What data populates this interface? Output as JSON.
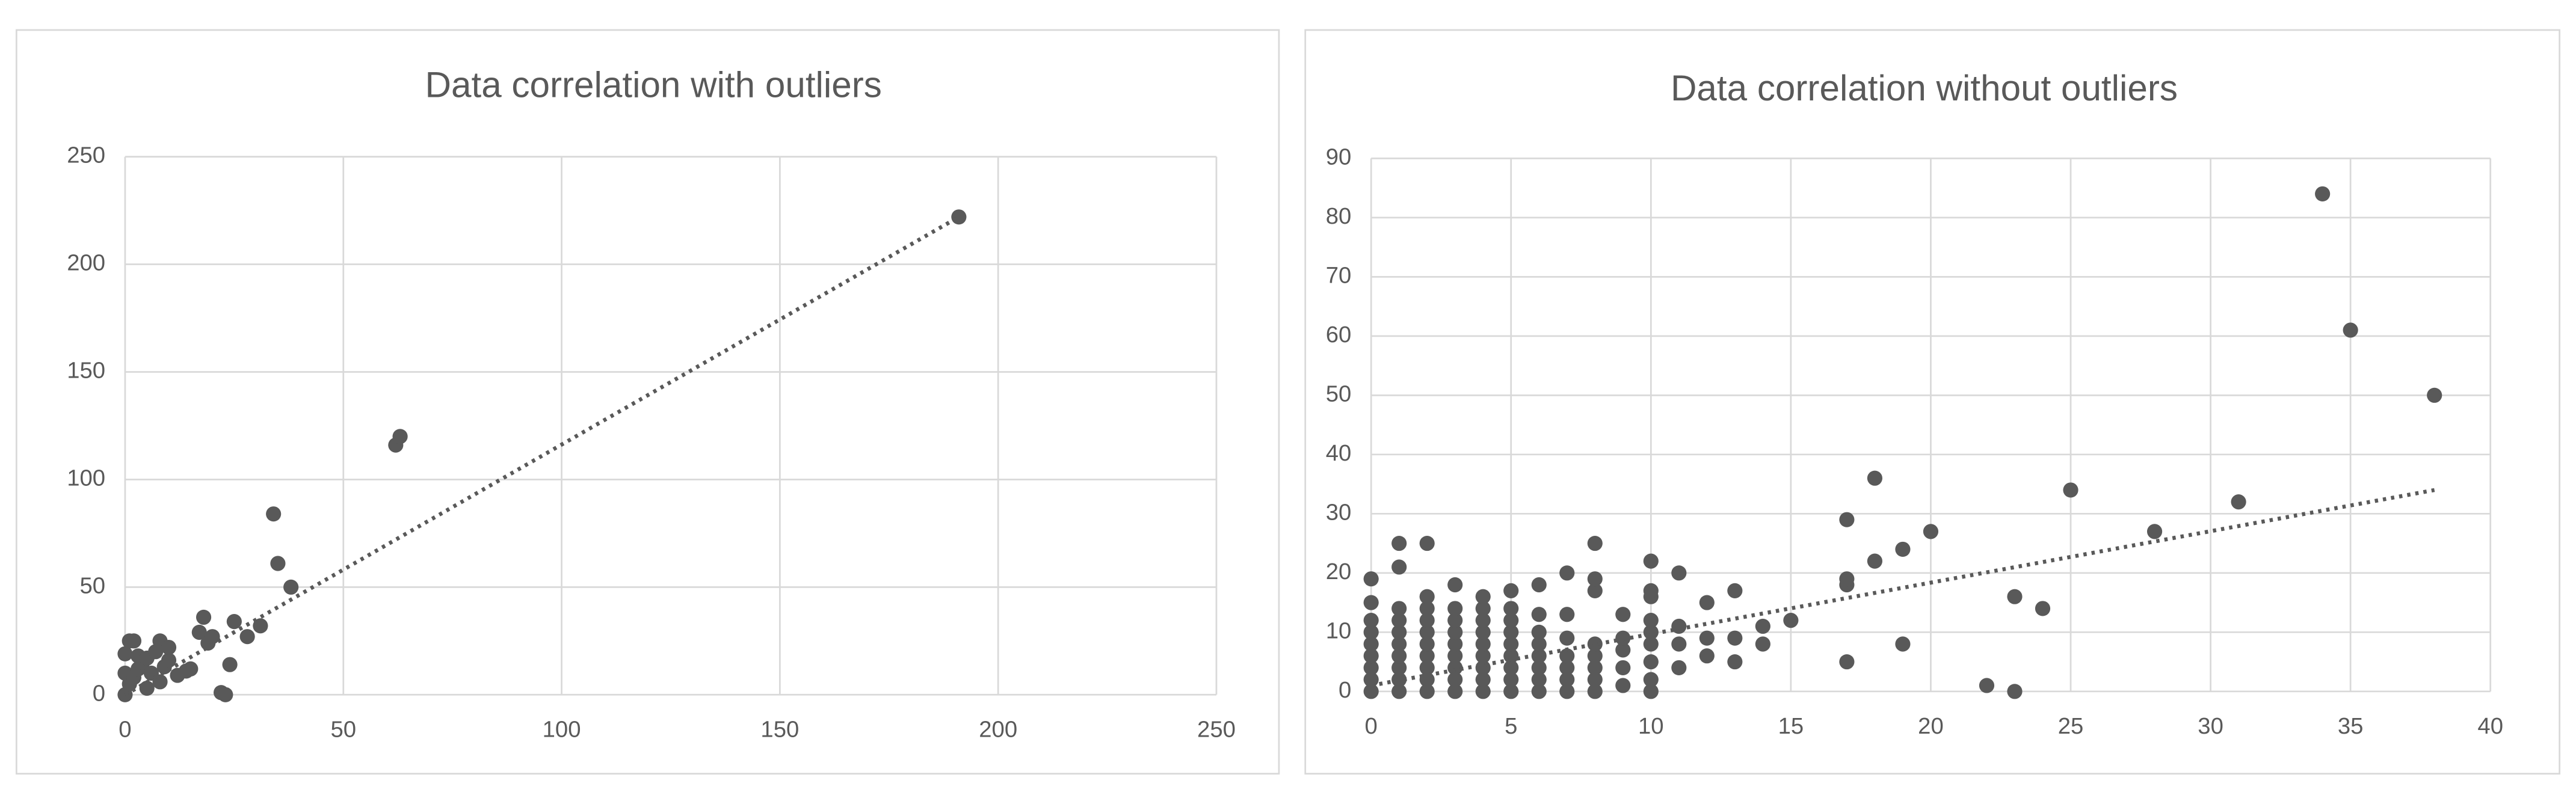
{
  "chart_data": [
    {
      "type": "scatter",
      "title": "Data correlation with outliers",
      "color": "#595959",
      "grid": true,
      "xlim": [
        0,
        250
      ],
      "xticks": [
        0,
        50,
        100,
        150,
        200,
        250
      ],
      "ylim": [
        0,
        250
      ],
      "yticks": [
        0,
        50,
        100,
        150,
        200,
        250
      ],
      "x": [
        0,
        0,
        0,
        1,
        1,
        2,
        2,
        3,
        3,
        4,
        5,
        5,
        6,
        7,
        8,
        8,
        9,
        10,
        10,
        12,
        14,
        15,
        17,
        18,
        19,
        20,
        22,
        23,
        24,
        25,
        28,
        31,
        34,
        35,
        38,
        62,
        63,
        191
      ],
      "values": [
        0,
        10,
        19,
        5,
        25,
        8,
        25,
        12,
        18,
        15,
        3,
        17,
        10,
        20,
        6,
        25,
        13,
        16,
        22,
        9,
        11,
        12,
        29,
        36,
        24,
        27,
        1,
        0,
        14,
        34,
        27,
        32,
        84,
        61,
        50,
        116,
        120,
        222
      ],
      "trendline": {
        "x": [
          0,
          191
        ],
        "values": [
          0,
          222
        ]
      }
    },
    {
      "type": "scatter",
      "title": "Data correlation without outliers",
      "color": "#595959",
      "grid": true,
      "xlim": [
        0,
        40
      ],
      "xticks": [
        0,
        5,
        10,
        15,
        20,
        25,
        30,
        35,
        40
      ],
      "ylim": [
        0,
        90
      ],
      "yticks": [
        0,
        10,
        20,
        30,
        40,
        50,
        60,
        70,
        80,
        90
      ],
      "x": [
        0,
        0,
        0,
        0,
        0,
        0,
        0,
        0,
        0,
        1,
        1,
        1,
        1,
        1,
        1,
        1,
        1,
        1,
        1,
        2,
        2,
        2,
        2,
        2,
        2,
        2,
        2,
        2,
        2,
        3,
        3,
        3,
        3,
        3,
        3,
        3,
        3,
        3,
        4,
        4,
        4,
        4,
        4,
        4,
        4,
        4,
        4,
        5,
        5,
        5,
        5,
        5,
        5,
        5,
        5,
        5,
        6,
        6,
        6,
        6,
        6,
        6,
        6,
        6,
        7,
        7,
        7,
        7,
        7,
        7,
        7,
        8,
        8,
        8,
        8,
        8,
        8,
        8,
        8,
        9,
        9,
        9,
        9,
        9,
        10,
        10,
        10,
        10,
        10,
        10,
        10,
        10,
        10,
        11,
        11,
        11,
        11,
        12,
        12,
        12,
        13,
        13,
        13,
        14,
        14,
        15,
        17,
        17,
        17,
        17,
        18,
        18,
        19,
        19,
        20,
        22,
        23,
        23,
        24,
        25,
        28,
        31,
        34,
        35,
        38
      ],
      "values": [
        0,
        2,
        4,
        6,
        8,
        10,
        12,
        15,
        19,
        0,
        2,
        4,
        6,
        8,
        10,
        12,
        14,
        21,
        25,
        0,
        2,
        4,
        6,
        8,
        10,
        12,
        14,
        16,
        25,
        0,
        2,
        4,
        6,
        8,
        10,
        12,
        14,
        18,
        0,
        2,
        4,
        6,
        8,
        10,
        12,
        14,
        16,
        0,
        2,
        4,
        6,
        8,
        10,
        12,
        14,
        17,
        0,
        2,
        4,
        6,
        8,
        10,
        13,
        18,
        0,
        2,
        4,
        6,
        9,
        13,
        20,
        0,
        2,
        4,
        6,
        8,
        17,
        19,
        25,
        1,
        4,
        7,
        9,
        13,
        0,
        2,
        5,
        8,
        10,
        12,
        16,
        17,
        22,
        4,
        8,
        11,
        20,
        6,
        9,
        15,
        5,
        9,
        17,
        8,
        11,
        12,
        5,
        18,
        19,
        29,
        22,
        36,
        8,
        24,
        27,
        1,
        0,
        16,
        14,
        34,
        27,
        32,
        84,
        61,
        50
      ],
      "trendline": {
        "x": [
          0,
          38
        ],
        "values": [
          1,
          34
        ]
      }
    }
  ]
}
